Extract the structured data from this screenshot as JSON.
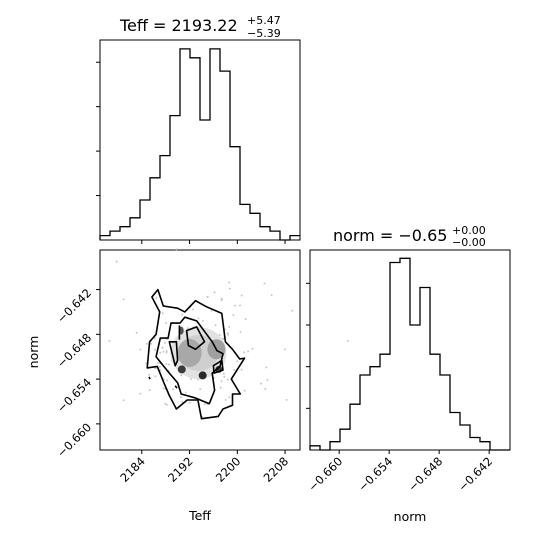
{
  "chart_data": [
    {
      "type": "bar",
      "panel": "hist-teff",
      "title": {
        "prefix": "Teff = 2193.22",
        "sup": "+5.47",
        "sub": "−5.39"
      },
      "x_range": [
        2177.0,
        2210.5
      ],
      "bin_edges": [
        2177.0,
        2178.675,
        2180.35,
        2182.025,
        2183.7,
        2185.375,
        2187.05,
        2188.725,
        2190.4,
        2192.075,
        2193.75,
        2195.425,
        2197.1,
        2198.775,
        2200.45,
        2202.125,
        2203.8,
        2205.475,
        2207.15,
        2208.825,
        2210.5
      ],
      "counts": [
        1,
        2,
        3,
        5,
        9,
        14,
        19,
        28,
        43,
        41,
        27,
        43,
        38,
        21,
        8,
        6,
        3,
        2,
        0,
        1
      ],
      "y_max": 45
    },
    {
      "type": "scatter",
      "panel": "corner-2d",
      "xlabel": "Teff",
      "ylabel": "norm",
      "x_range": [
        2177.0,
        2210.5
      ],
      "y_range": [
        -0.6635,
        -0.6367
      ],
      "xticks": [
        2184,
        2192,
        2200,
        2208
      ],
      "yticks": [
        -0.642,
        -0.648,
        -0.654,
        -0.66
      ],
      "ytick_labels": [
        "−0.642",
        "−0.648",
        "−0.654",
        "−0.660"
      ],
      "contour_levels": [
        [
          [
            2184.9,
            -0.6525
          ],
          [
            2185.3,
            -0.649
          ],
          [
            2186.4,
            -0.648
          ],
          [
            2187.0,
            -0.645
          ],
          [
            2185.7,
            -0.643
          ],
          [
            2186.7,
            -0.642
          ],
          [
            2187.6,
            -0.6442
          ],
          [
            2190.0,
            -0.6445
          ],
          [
            2191.2,
            -0.645
          ],
          [
            2193.0,
            -0.6435
          ],
          [
            2194.8,
            -0.6443
          ],
          [
            2197.4,
            -0.6452
          ],
          [
            2198.0,
            -0.649
          ],
          [
            2199.2,
            -0.65
          ],
          [
            2200.4,
            -0.6513
          ],
          [
            2201.2,
            -0.6512
          ],
          [
            2199.0,
            -0.654
          ],
          [
            2200.5,
            -0.656
          ],
          [
            2199.2,
            -0.656
          ],
          [
            2199.2,
            -0.6575
          ],
          [
            2197.6,
            -0.658
          ],
          [
            2196.8,
            -0.659
          ],
          [
            2194.0,
            -0.6593
          ],
          [
            2193.4,
            -0.6568
          ],
          [
            2191.6,
            -0.6568
          ],
          [
            2189.8,
            -0.658
          ],
          [
            2188.6,
            -0.6562
          ],
          [
            2187.7,
            -0.6545
          ],
          [
            2186.6,
            -0.6523
          ]
        ],
        [
          [
            2186.4,
            -0.651
          ],
          [
            2187.1,
            -0.6485
          ],
          [
            2188.4,
            -0.6485
          ],
          [
            2188.9,
            -0.6465
          ],
          [
            2190.4,
            -0.6465
          ],
          [
            2191.2,
            -0.6457
          ],
          [
            2193.2,
            -0.6462
          ],
          [
            2195.8,
            -0.649
          ],
          [
            2196.6,
            -0.6502
          ],
          [
            2197.6,
            -0.6506
          ],
          [
            2197.1,
            -0.6523
          ],
          [
            2195.8,
            -0.6532
          ],
          [
            2196.2,
            -0.6555
          ],
          [
            2195.3,
            -0.6573
          ],
          [
            2192.9,
            -0.6565
          ],
          [
            2190.6,
            -0.656
          ],
          [
            2190.0,
            -0.6545
          ],
          [
            2188.6,
            -0.6532
          ],
          [
            2187.6,
            -0.6522
          ]
        ],
        [
          [
            2188.6,
            -0.649
          ],
          [
            2189.8,
            -0.649
          ],
          [
            2190.0,
            -0.6515
          ],
          [
            2189.6,
            -0.6522
          ]
        ],
        [
          [
            2191.5,
            -0.6475
          ],
          [
            2193.2,
            -0.647
          ],
          [
            2194.5,
            -0.649
          ],
          [
            2193.0,
            -0.65
          ],
          [
            2191.8,
            -0.6495
          ]
        ],
        [
          [
            2190.3,
            -0.6468
          ],
          [
            2190.3,
            -0.6487
          ]
        ],
        [
          [
            2196.0,
            -0.6522
          ],
          [
            2197.4,
            -0.6515
          ],
          [
            2197.6,
            -0.6528
          ],
          [
            2196.1,
            -0.6532
          ]
        ],
        [
          [
            2189.6,
            -0.6549
          ],
          [
            2189.9,
            -0.6552
          ]
        ],
        [
          [
            2185.2,
            -0.6537
          ],
          [
            2185.4,
            -0.654
          ]
        ]
      ]
    },
    {
      "type": "bar",
      "panel": "hist-norm",
      "title": {
        "prefix": "norm = −0.65",
        "sup": "+0.00",
        "sub": "−0.00"
      },
      "xlabel": "norm",
      "x_range": [
        -0.6635,
        -0.6395
      ],
      "xticks": [
        -0.66,
        -0.654,
        -0.648,
        -0.642
      ],
      "xtick_labels": [
        "−0.660",
        "−0.654",
        "−0.648",
        "−0.642"
      ],
      "bin_edges": [
        -0.6635,
        -0.6623,
        -0.6611,
        -0.6599,
        -0.6587,
        -0.6575,
        -0.6563,
        -0.6551,
        -0.6539,
        -0.6527,
        -0.6515,
        -0.6503,
        -0.6491,
        -0.6479,
        -0.6467,
        -0.6455,
        -0.6443,
        -0.6431,
        -0.6419,
        -0.6407,
        -0.6395
      ],
      "counts": [
        1,
        0,
        2,
        5,
        11,
        18,
        20,
        23,
        45,
        46,
        30,
        39,
        23,
        18,
        9,
        6,
        3,
        2,
        0,
        0
      ],
      "y_max": 48
    }
  ]
}
